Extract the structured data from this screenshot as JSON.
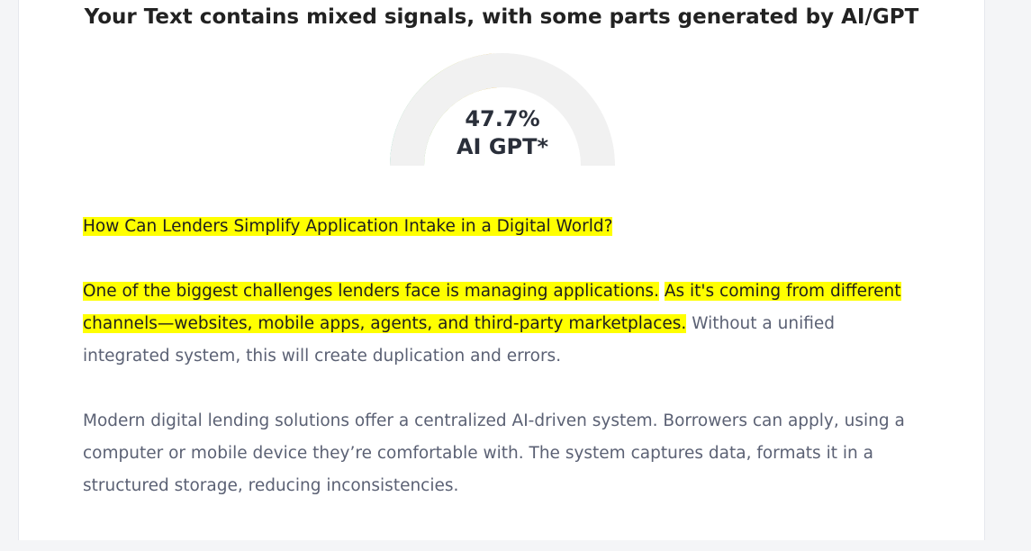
{
  "title": "Your Text contains mixed signals, with some parts generated by AI/GPT",
  "gauge": {
    "value": 47.7,
    "label": "47.7%",
    "caption": "AI GPT*"
  },
  "paragraphs": [
    {
      "segments": [
        {
          "text": "How Can Lenders Simplify Application Intake in a Digital World?",
          "highlighted": true
        }
      ]
    },
    {
      "segments": [
        {
          "text": "One of the biggest challenges lenders face is managing applications.",
          "highlighted": true
        },
        {
          "text": "As it's coming from different channels—websites, mobile apps, agents, and third-party marketplaces.",
          "highlighted": true
        },
        {
          "text": "Without a unified integrated system, this will create duplication and errors.",
          "highlighted": false
        }
      ]
    },
    {
      "segments": [
        {
          "text": "Modern digital lending solutions offer a centralized AI-driven system. Borrowers can apply, using a computer or mobile device they’re comfortable with. The system captures data, formats it in a structured storage, reducing inconsistencies.",
          "highlighted": false
        }
      ]
    }
  ]
}
